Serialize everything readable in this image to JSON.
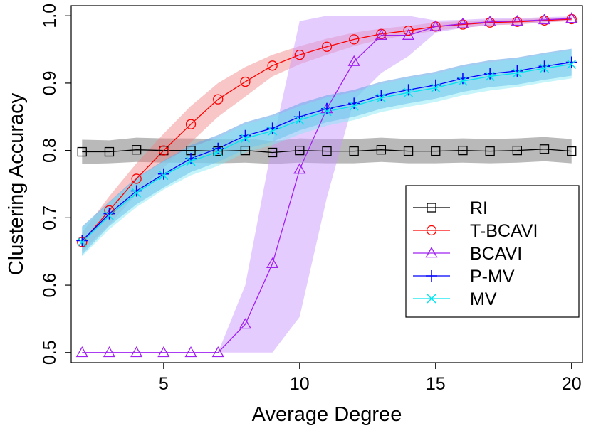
{
  "chart_data": {
    "type": "line",
    "title": "",
    "xlabel": "Average Degree",
    "ylabel": "Clustering Accuracy",
    "xlim": [
      1.6,
      20.4
    ],
    "ylim": [
      0.485,
      1.015
    ],
    "xticks": [
      5,
      10,
      15,
      20
    ],
    "yticks": [
      0.5,
      0.6,
      0.7,
      0.8,
      0.9,
      1.0
    ],
    "xtick_labels": [
      "5",
      "10",
      "15",
      "20"
    ],
    "ytick_labels": [
      "0.5",
      "0.6",
      "0.7",
      "0.8",
      "0.9",
      "1.0"
    ],
    "legend_position": "right-middle",
    "x": [
      2,
      3,
      4,
      5,
      6,
      7,
      8,
      9,
      10,
      11,
      12,
      13,
      14,
      15,
      16,
      17,
      18,
      19,
      20
    ],
    "series": [
      {
        "name": "RI",
        "color": "#000000",
        "band_color": "#7f7f7f",
        "marker": "square",
        "values": [
          0.798,
          0.798,
          0.801,
          0.8,
          0.8,
          0.799,
          0.8,
          0.797,
          0.8,
          0.799,
          0.799,
          0.801,
          0.799,
          0.799,
          0.8,
          0.799,
          0.8,
          0.802,
          0.799
        ],
        "lower": [
          0.78,
          0.781,
          0.783,
          0.782,
          0.782,
          0.781,
          0.782,
          0.78,
          0.782,
          0.781,
          0.781,
          0.783,
          0.781,
          0.781,
          0.782,
          0.781,
          0.782,
          0.784,
          0.781
        ],
        "upper": [
          0.816,
          0.815,
          0.819,
          0.818,
          0.818,
          0.817,
          0.818,
          0.814,
          0.818,
          0.817,
          0.817,
          0.819,
          0.817,
          0.817,
          0.818,
          0.817,
          0.818,
          0.82,
          0.817
        ]
      },
      {
        "name": "T-BCAVI",
        "color": "#ff0000",
        "band_color": "#f08080",
        "marker": "circle",
        "values": [
          0.664,
          0.711,
          0.758,
          0.8,
          0.839,
          0.876,
          0.902,
          0.926,
          0.942,
          0.954,
          0.965,
          0.973,
          0.978,
          0.984,
          0.987,
          0.99,
          0.991,
          0.993,
          0.995
        ],
        "lower": [
          0.65,
          0.69,
          0.735,
          0.775,
          0.812,
          0.85,
          0.88,
          0.91,
          0.928,
          0.942,
          0.955,
          0.965,
          0.971,
          0.978,
          0.982,
          0.986,
          0.987,
          0.99,
          0.992
        ],
        "upper": [
          0.678,
          0.732,
          0.781,
          0.825,
          0.866,
          0.9,
          0.924,
          0.942,
          0.955,
          0.966,
          0.975,
          0.981,
          0.985,
          0.99,
          0.992,
          0.994,
          0.995,
          0.996,
          0.998
        ]
      },
      {
        "name": "BCAVI",
        "color": "#a020f0",
        "band_color": "#cc99ff",
        "marker": "triangle",
        "values": [
          0.5,
          0.5,
          0.5,
          0.5,
          0.5,
          0.5,
          0.542,
          0.632,
          0.772,
          0.862,
          0.932,
          0.971,
          0.971,
          0.984,
          0.988,
          0.991,
          0.992,
          0.994,
          0.996
        ],
        "lower": [
          0.5,
          0.5,
          0.5,
          0.5,
          0.5,
          0.5,
          0.5,
          0.5,
          0.553,
          0.73,
          0.875,
          0.915,
          0.94,
          0.975,
          0.982,
          0.986,
          0.988,
          0.99,
          0.993
        ],
        "upper": [
          0.5,
          0.5,
          0.5,
          0.5,
          0.5,
          0.5,
          0.6,
          0.81,
          0.992,
          1.0,
          1.0,
          1.0,
          1.0,
          0.993,
          0.994,
          0.996,
          0.996,
          0.998,
          0.999
        ]
      },
      {
        "name": "P-MV",
        "color": "#0000ff",
        "band_color": "#6aa8e8",
        "marker": "plus",
        "values": [
          0.666,
          0.706,
          0.74,
          0.765,
          0.788,
          0.803,
          0.822,
          0.833,
          0.85,
          0.862,
          0.87,
          0.882,
          0.89,
          0.897,
          0.907,
          0.914,
          0.918,
          0.925,
          0.931
        ],
        "lower": [
          0.645,
          0.688,
          0.72,
          0.745,
          0.768,
          0.783,
          0.802,
          0.813,
          0.83,
          0.842,
          0.85,
          0.862,
          0.87,
          0.877,
          0.887,
          0.894,
          0.898,
          0.905,
          0.911
        ],
        "upper": [
          0.687,
          0.724,
          0.76,
          0.785,
          0.808,
          0.823,
          0.842,
          0.853,
          0.87,
          0.882,
          0.89,
          0.902,
          0.91,
          0.917,
          0.927,
          0.934,
          0.938,
          0.945,
          0.951
        ]
      },
      {
        "name": "MV",
        "color": "#00e5ee",
        "band_color": "#7fe8f4",
        "marker": "cross",
        "values": [
          0.664,
          0.703,
          0.737,
          0.763,
          0.784,
          0.798,
          0.818,
          0.829,
          0.845,
          0.858,
          0.866,
          0.878,
          0.886,
          0.893,
          0.903,
          0.91,
          0.915,
          0.922,
          0.928
        ],
        "lower": [
          0.643,
          0.683,
          0.716,
          0.742,
          0.763,
          0.777,
          0.797,
          0.808,
          0.824,
          0.837,
          0.845,
          0.857,
          0.865,
          0.872,
          0.882,
          0.889,
          0.894,
          0.901,
          0.907
        ],
        "upper": [
          0.685,
          0.723,
          0.758,
          0.784,
          0.805,
          0.819,
          0.839,
          0.85,
          0.866,
          0.879,
          0.887,
          0.899,
          0.907,
          0.914,
          0.924,
          0.931,
          0.936,
          0.943,
          0.949
        ]
      }
    ]
  }
}
